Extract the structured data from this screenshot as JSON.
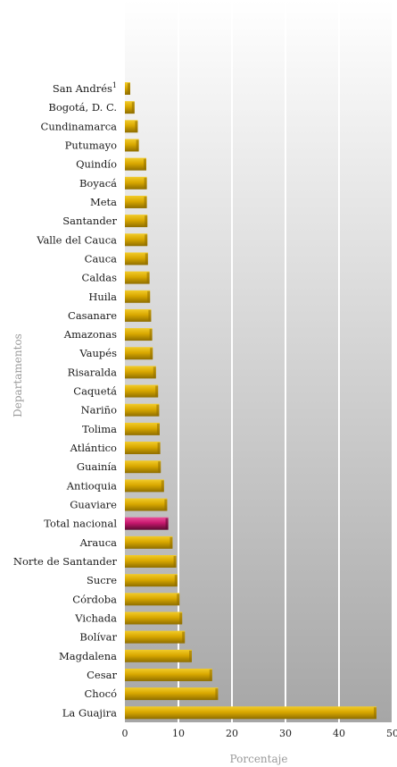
{
  "chart_data": {
    "type": "bar",
    "orientation": "horizontal",
    "categories": [
      "San Andrés",
      "Bogotá, D. C.",
      "Cundinamarca",
      "Putumayo",
      "Quindío",
      "Boyacá",
      "Meta",
      "Santander",
      "Valle del Cauca",
      "Cauca",
      "Caldas",
      "Huila",
      "Casanare",
      "Amazonas",
      "Vaupés",
      "Risaralda",
      "Caquetá",
      "Nariño",
      "Tolima",
      "Atlántico",
      "Guainía",
      "Antioquia",
      "Guaviare",
      "Total nacional",
      "Arauca",
      "Norte de Santander",
      "Sucre",
      "Córdoba",
      "Vichada",
      "Bolívar",
      "Magdalena",
      "Cesar",
      "Chocó",
      "La Guajira"
    ],
    "superscripts": {
      "San Andrés": "1"
    },
    "values": [
      1.0,
      1.8,
      2.4,
      2.6,
      4.0,
      4.1,
      4.1,
      4.2,
      4.2,
      4.3,
      4.6,
      4.7,
      4.9,
      5.1,
      5.2,
      5.8,
      6.2,
      6.4,
      6.5,
      6.6,
      6.7,
      7.3,
      7.9,
      8.1,
      8.9,
      9.6,
      9.8,
      10.2,
      10.7,
      11.2,
      12.5,
      16.3,
      17.4,
      47.0
    ],
    "highlight": "Total nacional",
    "colors": {
      "bar": "#d9a800",
      "bar_top": "#f2cc2a",
      "bar_bottom": "#8f6e00",
      "highlight": "#c8186e",
      "highlight_top": "#ea4f9a",
      "highlight_bottom": "#5a0a30",
      "grid": "#ffffff"
    },
    "xlabel": "Porcentaje",
    "ylabel": "Departamentos",
    "xlim": [
      0,
      50
    ],
    "xticks": [
      0,
      10,
      20,
      30,
      40,
      50
    ],
    "grid": true
  }
}
